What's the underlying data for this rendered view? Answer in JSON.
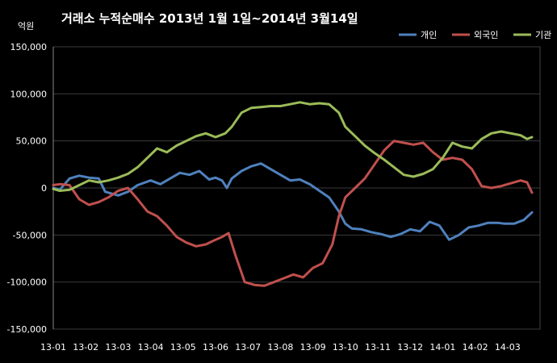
{
  "chart_data": {
    "type": "line",
    "title": "거래소  누적순매수 2013년 1월 1일~2014년 3월14일",
    "ylabel": "억원",
    "xlabel": "",
    "ylim": [
      -150000,
      150000
    ],
    "y_ticks": [
      "150,000",
      "100,000",
      "50,000",
      "0",
      "-50,000",
      "-100,000",
      "-150,000"
    ],
    "y_tick_values": [
      150000,
      100000,
      50000,
      0,
      -50000,
      -100000,
      -150000
    ],
    "categories": [
      "13-01",
      "13-02",
      "13-03",
      "13-04",
      "13-05",
      "13-06",
      "13-07",
      "13-08",
      "13-09",
      "13-10",
      "13-11",
      "13-12",
      "14-01",
      "14-02",
      "14-03"
    ],
    "grid": true,
    "legend_position": "top-right",
    "series": [
      {
        "name": "개인",
        "color": "#4F81BD",
        "values": [
          [
            0,
            0
          ],
          [
            0.2,
            -2000
          ],
          [
            0.5,
            10000
          ],
          [
            0.8,
            13000
          ],
          [
            1.1,
            11000
          ],
          [
            1.4,
            10000
          ],
          [
            1.6,
            -4000
          ],
          [
            2.0,
            -8000
          ],
          [
            2.3,
            -4000
          ],
          [
            2.6,
            3000
          ],
          [
            3.0,
            8000
          ],
          [
            3.3,
            4000
          ],
          [
            3.6,
            10000
          ],
          [
            3.9,
            16000
          ],
          [
            4.2,
            14000
          ],
          [
            4.5,
            18000
          ],
          [
            4.8,
            9000
          ],
          [
            5.0,
            11000
          ],
          [
            5.2,
            8000
          ],
          [
            5.35,
            0
          ],
          [
            5.5,
            10000
          ],
          [
            5.8,
            18000
          ],
          [
            6.1,
            23000
          ],
          [
            6.4,
            26000
          ],
          [
            6.7,
            20000
          ],
          [
            7.0,
            14000
          ],
          [
            7.3,
            8000
          ],
          [
            7.6,
            9000
          ],
          [
            7.9,
            4000
          ],
          [
            8.2,
            -3000
          ],
          [
            8.5,
            -10000
          ],
          [
            8.8,
            -25000
          ],
          [
            9.0,
            -38000
          ],
          [
            9.2,
            -43000
          ],
          [
            9.5,
            -44000
          ],
          [
            9.8,
            -47000
          ],
          [
            10.1,
            -49000
          ],
          [
            10.4,
            -52000
          ],
          [
            10.7,
            -49000
          ],
          [
            11.0,
            -44000
          ],
          [
            11.3,
            -46000
          ],
          [
            11.6,
            -36000
          ],
          [
            11.9,
            -40000
          ],
          [
            12.2,
            -55000
          ],
          [
            12.5,
            -50000
          ],
          [
            12.8,
            -42000
          ],
          [
            13.1,
            -40000
          ],
          [
            13.4,
            -37000
          ],
          [
            13.7,
            -37000
          ],
          [
            13.9,
            -38000
          ],
          [
            14.2,
            -38000
          ],
          [
            14.5,
            -34000
          ],
          [
            14.75,
            -26000
          ]
        ]
      },
      {
        "name": "외국인",
        "color": "#C0504D",
        "values": [
          [
            0,
            3000
          ],
          [
            0.2,
            4000
          ],
          [
            0.5,
            3000
          ],
          [
            0.8,
            -12000
          ],
          [
            1.1,
            -18000
          ],
          [
            1.4,
            -15000
          ],
          [
            1.7,
            -10000
          ],
          [
            2.0,
            -3000
          ],
          [
            2.3,
            0
          ],
          [
            2.6,
            -12000
          ],
          [
            2.9,
            -25000
          ],
          [
            3.2,
            -30000
          ],
          [
            3.5,
            -40000
          ],
          [
            3.8,
            -52000
          ],
          [
            4.1,
            -58000
          ],
          [
            4.4,
            -62000
          ],
          [
            4.7,
            -60000
          ],
          [
            5.0,
            -55000
          ],
          [
            5.2,
            -52000
          ],
          [
            5.4,
            -48000
          ],
          [
            5.6,
            -70000
          ],
          [
            5.9,
            -100000
          ],
          [
            6.2,
            -103000
          ],
          [
            6.5,
            -104000
          ],
          [
            6.8,
            -100000
          ],
          [
            7.1,
            -96000
          ],
          [
            7.4,
            -92000
          ],
          [
            7.7,
            -95000
          ],
          [
            8.0,
            -85000
          ],
          [
            8.3,
            -80000
          ],
          [
            8.6,
            -60000
          ],
          [
            8.8,
            -30000
          ],
          [
            9.0,
            -10000
          ],
          [
            9.3,
            0
          ],
          [
            9.6,
            10000
          ],
          [
            9.9,
            25000
          ],
          [
            10.2,
            40000
          ],
          [
            10.5,
            50000
          ],
          [
            10.8,
            48000
          ],
          [
            11.1,
            46000
          ],
          [
            11.4,
            48000
          ],
          [
            11.7,
            38000
          ],
          [
            12.0,
            30000
          ],
          [
            12.3,
            32000
          ],
          [
            12.6,
            30000
          ],
          [
            12.9,
            20000
          ],
          [
            13.2,
            2000
          ],
          [
            13.5,
            0
          ],
          [
            13.8,
            2000
          ],
          [
            14.1,
            5000
          ],
          [
            14.4,
            8000
          ],
          [
            14.6,
            6000
          ],
          [
            14.75,
            -5000
          ]
        ]
      },
      {
        "name": "기관",
        "color": "#9BBB59",
        "values": [
          [
            0,
            -1000
          ],
          [
            0.2,
            -3000
          ],
          [
            0.5,
            -2000
          ],
          [
            0.8,
            3000
          ],
          [
            1.1,
            8000
          ],
          [
            1.4,
            6000
          ],
          [
            1.7,
            8000
          ],
          [
            2.0,
            11000
          ],
          [
            2.3,
            15000
          ],
          [
            2.6,
            22000
          ],
          [
            2.9,
            32000
          ],
          [
            3.2,
            42000
          ],
          [
            3.5,
            38000
          ],
          [
            3.8,
            45000
          ],
          [
            4.1,
            50000
          ],
          [
            4.4,
            55000
          ],
          [
            4.7,
            58000
          ],
          [
            5.0,
            54000
          ],
          [
            5.3,
            58000
          ],
          [
            5.5,
            65000
          ],
          [
            5.8,
            80000
          ],
          [
            6.1,
            85000
          ],
          [
            6.4,
            86000
          ],
          [
            6.7,
            87000
          ],
          [
            7.0,
            87000
          ],
          [
            7.3,
            89000
          ],
          [
            7.6,
            91000
          ],
          [
            7.9,
            89000
          ],
          [
            8.2,
            90000
          ],
          [
            8.5,
            89000
          ],
          [
            8.8,
            80000
          ],
          [
            9.0,
            65000
          ],
          [
            9.3,
            55000
          ],
          [
            9.6,
            45000
          ],
          [
            9.9,
            37000
          ],
          [
            10.2,
            30000
          ],
          [
            10.5,
            22000
          ],
          [
            10.8,
            14000
          ],
          [
            11.1,
            12000
          ],
          [
            11.4,
            15000
          ],
          [
            11.7,
            20000
          ],
          [
            12.0,
            32000
          ],
          [
            12.3,
            48000
          ],
          [
            12.6,
            44000
          ],
          [
            12.9,
            42000
          ],
          [
            13.2,
            52000
          ],
          [
            13.5,
            58000
          ],
          [
            13.8,
            60000
          ],
          [
            14.1,
            58000
          ],
          [
            14.4,
            56000
          ],
          [
            14.6,
            52000
          ],
          [
            14.75,
            54000
          ]
        ]
      }
    ]
  }
}
